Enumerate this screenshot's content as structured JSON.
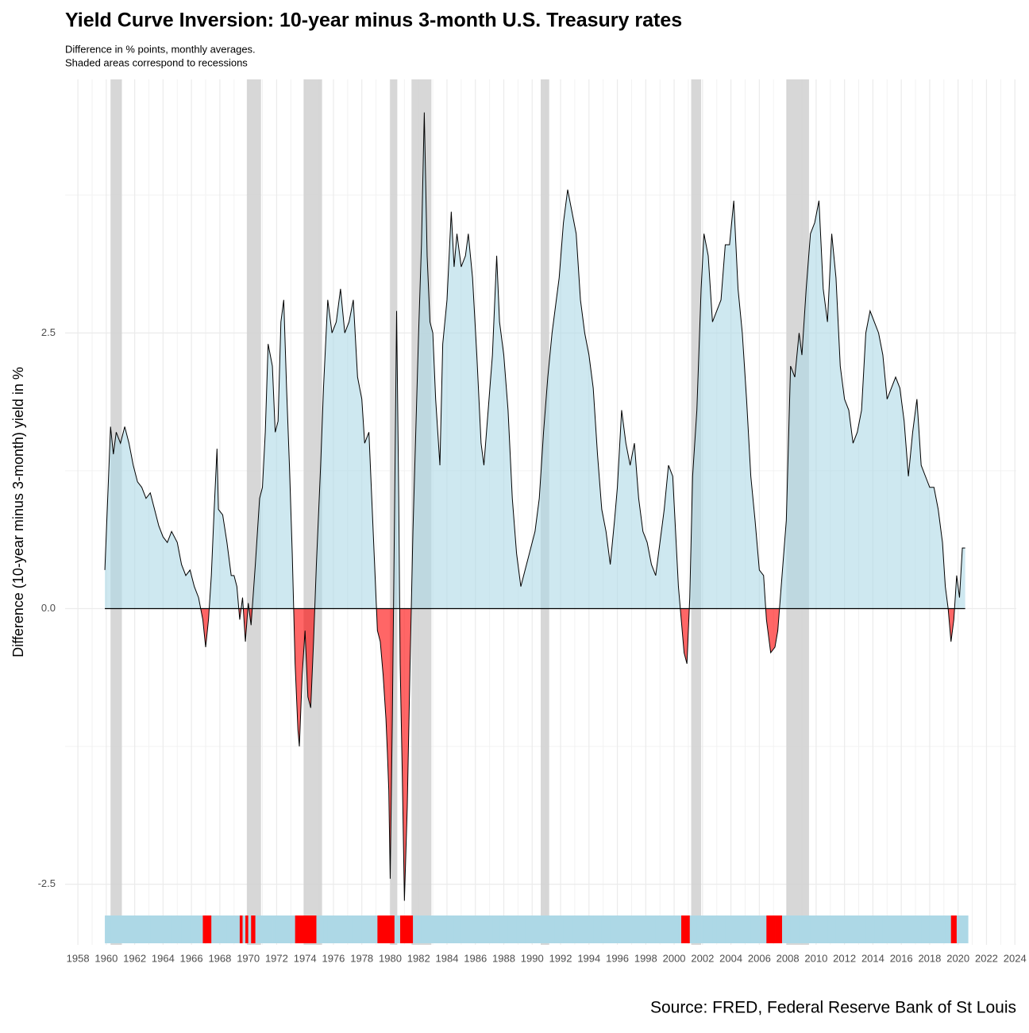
{
  "chart_data": {
    "type": "area",
    "title": "Yield Curve Inversion: 10-year minus 3-month U.S. Treasury rates",
    "subtitle": [
      "Difference in % points, monthly averages.",
      "Shaded areas correspond to recessions"
    ],
    "y_label": "Difference (10-year minus 3-month) yield in %",
    "caption": "Source: FRED, Federal Reserve Bank of St Louis",
    "xlim": [
      1957.1,
      2024.1
    ],
    "xticks": [
      1958,
      1960,
      1962,
      1964,
      1966,
      1968,
      1970,
      1972,
      1974,
      1976,
      1978,
      1980,
      1982,
      1984,
      1986,
      1988,
      1990,
      1992,
      1994,
      1996,
      1998,
      2000,
      2002,
      2004,
      2006,
      2008,
      2010,
      2012,
      2014,
      2016,
      2018,
      2020,
      2022,
      2024
    ],
    "ylim": [
      -3.05,
      4.8
    ],
    "yticks": [
      -2.5,
      {
        "value": 0,
        "label": "0.0"
      },
      2.5
    ],
    "grid": true,
    "positive_color": "#add8e6",
    "negative_color": "#ff0000",
    "recessions": [
      {
        "start": 1960.3,
        "end": 1961.1
      },
      {
        "start": 1969.9,
        "end": 1970.9
      },
      {
        "start": 1973.9,
        "end": 1975.2
      },
      {
        "start": 1980.0,
        "end": 1980.5
      },
      {
        "start": 1981.5,
        "end": 1982.9
      },
      {
        "start": 1990.6,
        "end": 1991.2
      },
      {
        "start": 2001.2,
        "end": 2001.9
      },
      {
        "start": 2007.9,
        "end": 2009.5
      }
    ],
    "x": [
      1959.9,
      1960.1,
      1960.3,
      1960.5,
      1960.7,
      1961.0,
      1961.3,
      1961.6,
      1961.9,
      1962.2,
      1962.5,
      1962.8,
      1963.1,
      1963.4,
      1963.7,
      1964.0,
      1964.3,
      1964.6,
      1965.0,
      1965.3,
      1965.6,
      1965.9,
      1966.2,
      1966.5,
      1966.8,
      1967.0,
      1967.2,
      1967.4,
      1967.6,
      1967.8,
      1967.9,
      1968.2,
      1968.5,
      1968.8,
      1969.0,
      1969.2,
      1969.4,
      1969.6,
      1969.8,
      1970.0,
      1970.2,
      1970.5,
      1970.8,
      1971.0,
      1971.2,
      1971.4,
      1971.7,
      1971.9,
      1972.1,
      1972.3,
      1972.5,
      1972.7,
      1972.9,
      1973.1,
      1973.3,
      1973.5,
      1973.6,
      1973.8,
      1974.0,
      1974.2,
      1974.4,
      1974.6,
      1974.8,
      1975.1,
      1975.3,
      1975.6,
      1975.9,
      1976.2,
      1976.5,
      1976.8,
      1977.1,
      1977.4,
      1977.7,
      1978.0,
      1978.2,
      1978.5,
      1978.7,
      1978.9,
      1979.1,
      1979.3,
      1979.5,
      1979.7,
      1979.8,
      1979.9,
      1980.0,
      1980.15,
      1980.3,
      1980.45,
      1980.6,
      1980.7,
      1980.85,
      1981.0,
      1981.2,
      1981.4,
      1981.6,
      1981.8,
      1982.0,
      1982.2,
      1982.4,
      1982.6,
      1982.8,
      1983.0,
      1983.2,
      1983.5,
      1983.7,
      1984.0,
      1984.3,
      1984.5,
      1984.7,
      1985.0,
      1985.3,
      1985.5,
      1985.8,
      1986.1,
      1986.4,
      1986.6,
      1986.9,
      1987.2,
      1987.5,
      1987.7,
      1988.0,
      1988.3,
      1988.6,
      1988.9,
      1989.2,
      1989.5,
      1989.8,
      1990.2,
      1990.5,
      1990.8,
      1991.1,
      1991.4,
      1991.6,
      1991.9,
      1992.2,
      1992.5,
      1992.8,
      1993.1,
      1993.4,
      1993.7,
      1994.0,
      1994.3,
      1994.6,
      1994.9,
      1995.2,
      1995.5,
      1995.8,
      1996.0,
      1996.3,
      1996.6,
      1996.9,
      1997.2,
      1997.5,
      1997.8,
      1998.1,
      1998.4,
      1998.7,
      1999.0,
      1999.3,
      1999.6,
      1999.9,
      2000.1,
      2000.3,
      2000.5,
      2000.7,
      2000.9,
      2001.1,
      2001.3,
      2001.6,
      2001.9,
      2002.1,
      2002.4,
      2002.7,
      2003.0,
      2003.3,
      2003.6,
      2003.9,
      2004.2,
      2004.5,
      2004.8,
      2005.1,
      2005.4,
      2005.7,
      2006.0,
      2006.3,
      2006.5,
      2006.8,
      2007.1,
      2007.3,
      2007.6,
      2007.9,
      2008.2,
      2008.5,
      2008.8,
      2009.0,
      2009.3,
      2009.6,
      2009.9,
      2010.2,
      2010.5,
      2010.8,
      2011.1,
      2011.4,
      2011.7,
      2012.0,
      2012.3,
      2012.6,
      2012.9,
      2013.2,
      2013.5,
      2013.8,
      2014.1,
      2014.4,
      2014.7,
      2015.0,
      2015.3,
      2015.6,
      2015.9,
      2016.2,
      2016.5,
      2016.8,
      2017.1,
      2017.4,
      2017.7,
      2018.0,
      2018.3,
      2018.6,
      2018.9,
      2019.1,
      2019.3,
      2019.5,
      2019.7,
      2019.9,
      2020.1,
      2020.3,
      2020.5
    ],
    "values": [
      0.35,
      1.0,
      1.65,
      1.4,
      1.6,
      1.5,
      1.65,
      1.5,
      1.3,
      1.15,
      1.1,
      1.0,
      1.05,
      0.9,
      0.75,
      0.65,
      0.6,
      0.7,
      0.6,
      0.4,
      0.3,
      0.35,
      0.2,
      0.1,
      -0.1,
      -0.35,
      -0.1,
      0.3,
      0.9,
      1.45,
      0.9,
      0.85,
      0.6,
      0.3,
      0.3,
      0.2,
      -0.1,
      0.1,
      -0.3,
      0.05,
      -0.15,
      0.4,
      1.0,
      1.1,
      1.6,
      2.4,
      2.2,
      1.6,
      1.7,
      2.6,
      2.8,
      2.0,
      1.3,
      0.5,
      -0.5,
      -1.1,
      -1.25,
      -0.6,
      -0.2,
      -0.8,
      -0.9,
      -0.3,
      0.4,
      1.3,
      2.0,
      2.8,
      2.5,
      2.6,
      2.9,
      2.5,
      2.6,
      2.8,
      2.1,
      1.9,
      1.5,
      1.6,
      1.0,
      0.4,
      -0.2,
      -0.3,
      -0.6,
      -1.0,
      -1.3,
      -1.65,
      -2.45,
      -1.0,
      0.8,
      2.7,
      1.0,
      -0.5,
      -1.5,
      -2.65,
      -1.8,
      -0.5,
      0.7,
      1.6,
      2.5,
      3.3,
      4.5,
      3.2,
      2.6,
      2.5,
      1.9,
      1.3,
      2.4,
      2.8,
      3.6,
      3.1,
      3.4,
      3.1,
      3.2,
      3.4,
      3.0,
      2.3,
      1.5,
      1.3,
      1.8,
      2.3,
      3.2,
      2.6,
      2.3,
      1.8,
      1.0,
      0.5,
      0.2,
      0.35,
      0.5,
      0.7,
      1.0,
      1.6,
      2.1,
      2.5,
      2.7,
      3.0,
      3.5,
      3.8,
      3.6,
      3.4,
      2.8,
      2.5,
      2.3,
      2.0,
      1.4,
      0.9,
      0.7,
      0.4,
      0.8,
      1.1,
      1.8,
      1.5,
      1.3,
      1.5,
      1.0,
      0.7,
      0.6,
      0.4,
      0.3,
      0.6,
      0.9,
      1.3,
      1.2,
      0.7,
      0.2,
      -0.1,
      -0.4,
      -0.5,
      0.1,
      1.2,
      1.8,
      2.9,
      3.4,
      3.2,
      2.6,
      2.7,
      2.8,
      3.3,
      3.3,
      3.7,
      2.9,
      2.5,
      1.9,
      1.2,
      0.8,
      0.35,
      0.3,
      -0.1,
      -0.4,
      -0.35,
      -0.2,
      0.3,
      0.8,
      2.2,
      2.1,
      2.5,
      2.3,
      2.9,
      3.4,
      3.5,
      3.7,
      2.9,
      2.6,
      3.4,
      3.0,
      2.2,
      1.9,
      1.8,
      1.5,
      1.6,
      1.8,
      2.5,
      2.7,
      2.6,
      2.5,
      2.3,
      1.9,
      2.0,
      2.1,
      2.0,
      1.7,
      1.2,
      1.6,
      1.9,
      1.3,
      1.2,
      1.1,
      1.1,
      0.9,
      0.6,
      0.2,
      0.0,
      -0.3,
      -0.1,
      0.3,
      0.1,
      0.55,
      0.55
    ]
  }
}
